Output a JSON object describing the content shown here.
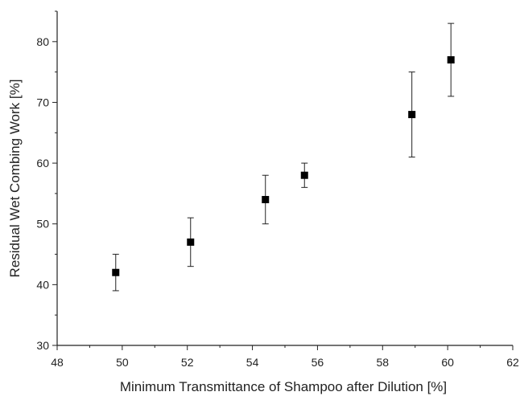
{
  "chart_data": {
    "type": "scatter",
    "title": "",
    "xlabel": "Minimum Transmittance of Shampoo after Dilution [%]",
    "ylabel": "Residual Wet Combing Work [%]",
    "xlim": [
      48,
      62
    ],
    "ylim": [
      30,
      85
    ],
    "xticks": [
      48,
      50,
      52,
      54,
      56,
      58,
      60,
      62
    ],
    "yticks": [
      30,
      40,
      50,
      60,
      70,
      80
    ],
    "grid": false,
    "marker": "square",
    "color": "#000000",
    "points": [
      {
        "x": 49.8,
        "y": 42,
        "yerr_low": 39,
        "yerr_high": 45
      },
      {
        "x": 52.1,
        "y": 47,
        "yerr_low": 43,
        "yerr_high": 51
      },
      {
        "x": 54.4,
        "y": 54,
        "yerr_low": 50,
        "yerr_high": 58
      },
      {
        "x": 55.6,
        "y": 58,
        "yerr_low": 56,
        "yerr_high": 60
      },
      {
        "x": 58.9,
        "y": 68,
        "yerr_low": 61,
        "yerr_high": 75
      },
      {
        "x": 60.1,
        "y": 77,
        "yerr_low": 71,
        "yerr_high": 83
      }
    ]
  }
}
